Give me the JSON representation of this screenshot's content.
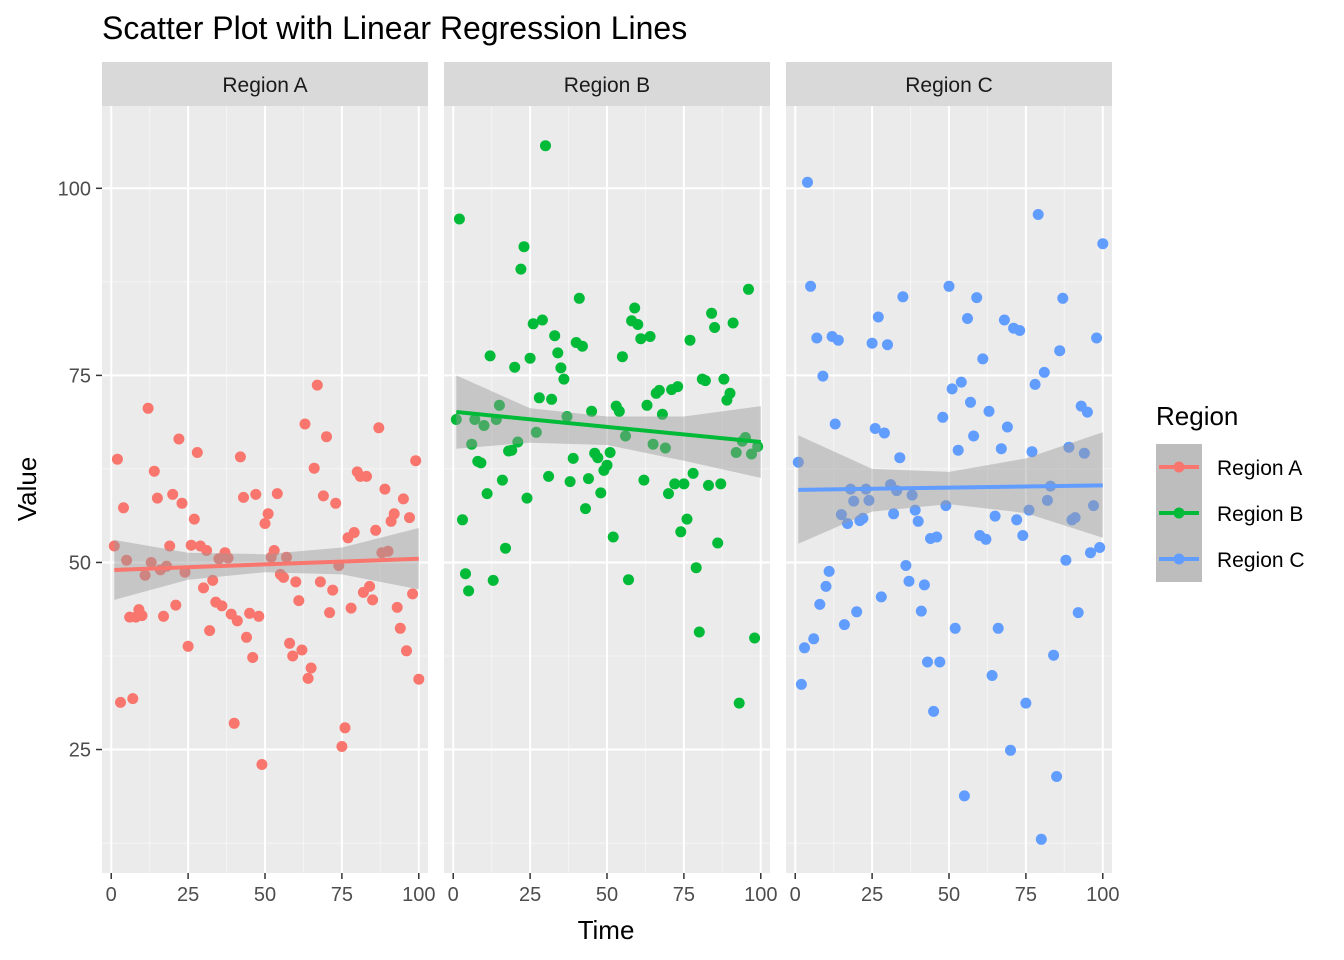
{
  "chart_data": {
    "type": "scatter",
    "title": "Scatter Plot with Linear Regression Lines",
    "xlabel": "Time",
    "ylabel": "Value",
    "xlim": [
      -3,
      103
    ],
    "ylim": [
      8.5,
      111
    ],
    "x_ticks": [
      0,
      25,
      50,
      75,
      100
    ],
    "y_ticks": [
      25,
      50,
      75,
      100
    ],
    "grid": true,
    "legend": {
      "title": "Region",
      "placement": "right"
    },
    "facets": [
      {
        "label": "Region A",
        "color": "#F8766D",
        "regression": {
          "x": [
            1,
            100
          ],
          "y": [
            49.0,
            50.5
          ]
        },
        "confidence_band": {
          "x": [
            1,
            25,
            50,
            75,
            100
          ],
          "lower": [
            45.0,
            47.7,
            48.7,
            48.4,
            46.4
          ],
          "upper": [
            53.0,
            51.3,
            51.1,
            52.0,
            54.6
          ]
        },
        "points": [
          [
            1,
            52.2
          ],
          [
            2,
            63.8
          ],
          [
            3,
            31.3
          ],
          [
            4,
            57.3
          ],
          [
            5,
            50.3
          ],
          [
            6,
            42.7
          ],
          [
            7,
            31.8
          ],
          [
            8,
            42.7
          ],
          [
            9,
            43.7
          ],
          [
            10,
            42.9
          ],
          [
            11,
            48.3
          ],
          [
            12,
            70.6
          ],
          [
            13,
            50.0
          ],
          [
            14,
            62.2
          ],
          [
            15,
            58.6
          ],
          [
            16,
            49.0
          ],
          [
            17,
            42.8
          ],
          [
            18,
            49.5
          ],
          [
            19,
            52.2
          ],
          [
            20,
            59.1
          ],
          [
            21,
            44.3
          ],
          [
            22,
            66.5
          ],
          [
            23,
            57.9
          ],
          [
            24,
            48.7
          ],
          [
            25,
            38.8
          ],
          [
            26,
            52.3
          ],
          [
            27,
            55.8
          ],
          [
            28,
            64.7
          ],
          [
            29,
            52.2
          ],
          [
            30,
            46.6
          ],
          [
            31,
            51.6
          ],
          [
            32,
            40.9
          ],
          [
            33,
            47.6
          ],
          [
            34,
            44.7
          ],
          [
            35,
            50.5
          ],
          [
            36,
            44.2
          ],
          [
            37,
            51.3
          ],
          [
            38,
            50.6
          ],
          [
            39,
            43.1
          ],
          [
            40,
            28.5
          ],
          [
            41,
            42.2
          ],
          [
            42,
            64.1
          ],
          [
            43,
            58.7
          ],
          [
            44,
            40.0
          ],
          [
            45,
            43.2
          ],
          [
            46,
            37.3
          ],
          [
            47,
            59.1
          ],
          [
            48,
            42.8
          ],
          [
            49,
            23.0
          ],
          [
            50,
            55.2
          ],
          [
            51,
            56.5
          ],
          [
            52,
            50.7
          ],
          [
            53,
            51.6
          ],
          [
            54,
            59.2
          ],
          [
            55,
            48.4
          ],
          [
            56,
            48.0
          ],
          [
            57,
            50.7
          ],
          [
            58,
            39.2
          ],
          [
            59,
            37.5
          ],
          [
            60,
            47.4
          ],
          [
            61,
            44.9
          ],
          [
            62,
            38.3
          ],
          [
            63,
            68.5
          ],
          [
            64,
            34.5
          ],
          [
            65,
            35.9
          ],
          [
            66,
            62.6
          ],
          [
            67,
            73.7
          ],
          [
            68,
            47.4
          ],
          [
            69,
            58.9
          ],
          [
            70,
            66.8
          ],
          [
            71,
            43.3
          ],
          [
            72,
            46.3
          ],
          [
            73,
            57.9
          ],
          [
            74,
            49.6
          ],
          [
            75,
            25.4
          ],
          [
            76,
            27.9
          ],
          [
            77,
            53.3
          ],
          [
            78,
            43.9
          ],
          [
            79,
            54.0
          ],
          [
            80,
            62.1
          ],
          [
            81,
            61.5
          ],
          [
            82,
            46.0
          ],
          [
            83,
            61.5
          ],
          [
            84,
            46.8
          ],
          [
            85,
            45.0
          ],
          [
            86,
            54.3
          ],
          [
            87,
            68.0
          ],
          [
            88,
            51.3
          ],
          [
            89,
            59.8
          ],
          [
            90,
            51.5
          ],
          [
            91,
            55.5
          ],
          [
            92,
            56.5
          ],
          [
            93,
            44.0
          ],
          [
            94,
            41.2
          ],
          [
            95,
            58.5
          ],
          [
            96,
            38.2
          ],
          [
            97,
            56.0
          ],
          [
            98,
            45.8
          ],
          [
            99,
            63.6
          ],
          [
            100,
            34.4
          ]
        ]
      },
      {
        "label": "Region B",
        "color": "#00BA38",
        "regression": {
          "x": [
            1,
            100
          ],
          "y": [
            70.1,
            66.1
          ]
        },
        "confidence_band": {
          "x": [
            1,
            25,
            50,
            75,
            100
          ],
          "lower": [
            65.2,
            66.0,
            65.7,
            63.6,
            61.3
          ],
          "upper": [
            75.0,
            70.6,
            69.5,
            69.5,
            70.9
          ]
        },
        "points": [
          [
            1,
            69.1
          ],
          [
            2,
            95.9
          ],
          [
            3,
            55.7
          ],
          [
            4,
            48.5
          ],
          [
            5,
            46.2
          ],
          [
            6,
            65.8
          ],
          [
            7,
            69.1
          ],
          [
            8,
            63.5
          ],
          [
            9,
            63.3
          ],
          [
            10,
            68.3
          ],
          [
            11,
            59.2
          ],
          [
            12,
            77.6
          ],
          [
            13,
            47.6
          ],
          [
            14,
            69.1
          ],
          [
            15,
            71.0
          ],
          [
            16,
            61.0
          ],
          [
            17,
            51.9
          ],
          [
            18,
            64.9
          ],
          [
            19,
            65.0
          ],
          [
            20,
            76.1
          ],
          [
            21,
            66.1
          ],
          [
            22,
            89.2
          ],
          [
            23,
            92.2
          ],
          [
            24,
            58.6
          ],
          [
            25,
            77.3
          ],
          [
            26,
            81.9
          ],
          [
            27,
            67.4
          ],
          [
            28,
            72.0
          ],
          [
            29,
            82.4
          ],
          [
            30,
            105.7
          ],
          [
            31,
            61.5
          ],
          [
            32,
            71.8
          ],
          [
            33,
            80.3
          ],
          [
            34,
            78.0
          ],
          [
            35,
            76.0
          ],
          [
            36,
            74.5
          ],
          [
            37,
            69.5
          ],
          [
            38,
            60.8
          ],
          [
            39,
            63.9
          ],
          [
            40,
            79.4
          ],
          [
            41,
            85.3
          ],
          [
            42,
            78.9
          ],
          [
            43,
            57.2
          ],
          [
            44,
            61.2
          ],
          [
            45,
            70.2
          ],
          [
            46,
            64.6
          ],
          [
            47,
            64.0
          ],
          [
            48,
            59.3
          ],
          [
            49,
            62.3
          ],
          [
            50,
            63.0
          ],
          [
            51,
            64.7
          ],
          [
            52,
            53.4
          ],
          [
            53,
            70.9
          ],
          [
            54,
            70.2
          ],
          [
            55,
            77.5
          ],
          [
            56,
            66.9
          ],
          [
            57,
            47.7
          ],
          [
            58,
            82.3
          ],
          [
            59,
            84.0
          ],
          [
            60,
            81.8
          ],
          [
            61,
            79.9
          ],
          [
            62,
            61.0
          ],
          [
            63,
            71.0
          ],
          [
            64,
            80.2
          ],
          [
            65,
            65.8
          ],
          [
            66,
            72.6
          ],
          [
            67,
            73.0
          ],
          [
            68,
            69.8
          ],
          [
            69,
            65.3
          ],
          [
            70,
            59.2
          ],
          [
            71,
            73.1
          ],
          [
            72,
            60.5
          ],
          [
            73,
            73.5
          ],
          [
            74,
            54.1
          ],
          [
            75,
            60.5
          ],
          [
            76,
            55.8
          ],
          [
            77,
            79.7
          ],
          [
            78,
            61.9
          ],
          [
            79,
            49.3
          ],
          [
            80,
            40.7
          ],
          [
            81,
            74.5
          ],
          [
            82,
            74.3
          ],
          [
            83,
            60.3
          ],
          [
            84,
            83.3
          ],
          [
            85,
            81.4
          ],
          [
            86,
            52.6
          ],
          [
            87,
            60.5
          ],
          [
            88,
            74.5
          ],
          [
            89,
            71.7
          ],
          [
            90,
            72.6
          ],
          [
            91,
            82.0
          ],
          [
            92,
            64.7
          ],
          [
            93,
            31.2
          ],
          [
            94,
            66.2
          ],
          [
            95,
            66.7
          ],
          [
            96,
            86.5
          ],
          [
            97,
            64.5
          ],
          [
            98,
            39.9
          ],
          [
            99,
            65.5
          ]
        ]
      },
      {
        "label": "Region C",
        "color": "#619CFF",
        "regression": {
          "x": [
            1,
            100
          ],
          "y": [
            59.7,
            60.3
          ]
        },
        "confidence_band": {
          "x": [
            1,
            25,
            50,
            75,
            100
          ],
          "lower": [
            52.5,
            56.8,
            57.8,
            56.6,
            53.3
          ],
          "upper": [
            67.0,
            62.5,
            62.1,
            63.9,
            67.4
          ]
        },
        "points": [
          [
            1,
            63.4
          ],
          [
            2,
            33.7
          ],
          [
            3,
            38.6
          ],
          [
            4,
            100.8
          ],
          [
            5,
            86.9
          ],
          [
            6,
            39.8
          ],
          [
            7,
            80.0
          ],
          [
            8,
            44.4
          ],
          [
            9,
            74.9
          ],
          [
            10,
            46.8
          ],
          [
            11,
            48.8
          ],
          [
            12,
            80.2
          ],
          [
            13,
            68.5
          ],
          [
            14,
            79.7
          ],
          [
            15,
            56.4
          ],
          [
            16,
            41.7
          ],
          [
            17,
            55.2
          ],
          [
            18,
            59.8
          ],
          [
            19,
            58.2
          ],
          [
            20,
            43.4
          ],
          [
            21,
            55.6
          ],
          [
            22,
            55.9
          ],
          [
            23,
            59.8
          ],
          [
            24,
            58.3
          ],
          [
            25,
            79.3
          ],
          [
            26,
            67.9
          ],
          [
            27,
            82.8
          ],
          [
            28,
            45.4
          ],
          [
            29,
            67.3
          ],
          [
            30,
            79.1
          ],
          [
            31,
            60.4
          ],
          [
            32,
            56.5
          ],
          [
            33,
            59.6
          ],
          [
            34,
            64.0
          ],
          [
            35,
            85.5
          ],
          [
            36,
            49.6
          ],
          [
            37,
            47.5
          ],
          [
            38,
            59.0
          ],
          [
            39,
            57.0
          ],
          [
            40,
            55.5
          ],
          [
            41,
            43.5
          ],
          [
            42,
            47.0
          ],
          [
            43,
            36.7
          ],
          [
            44,
            53.2
          ],
          [
            45,
            30.1
          ],
          [
            46,
            53.4
          ],
          [
            47,
            36.7
          ],
          [
            48,
            69.4
          ],
          [
            49,
            57.6
          ],
          [
            50,
            86.9
          ],
          [
            51,
            73.2
          ],
          [
            52,
            41.2
          ],
          [
            53,
            65.0
          ],
          [
            54,
            74.1
          ],
          [
            55,
            18.8
          ],
          [
            56,
            82.6
          ],
          [
            57,
            71.4
          ],
          [
            58,
            66.9
          ],
          [
            59,
            85.4
          ],
          [
            60,
            53.6
          ],
          [
            61,
            77.2
          ],
          [
            62,
            53.1
          ],
          [
            63,
            70.2
          ],
          [
            64,
            34.9
          ],
          [
            65,
            56.2
          ],
          [
            66,
            41.2
          ],
          [
            67,
            65.2
          ],
          [
            68,
            82.4
          ],
          [
            69,
            68.1
          ],
          [
            70,
            24.9
          ],
          [
            71,
            81.3
          ],
          [
            72,
            55.7
          ],
          [
            73,
            81.0
          ],
          [
            74,
            53.6
          ],
          [
            75,
            31.2
          ],
          [
            76,
            57.0
          ],
          [
            77,
            64.8
          ],
          [
            78,
            73.8
          ],
          [
            79,
            96.5
          ],
          [
            80,
            13.0
          ],
          [
            81,
            75.4
          ],
          [
            82,
            58.3
          ],
          [
            83,
            60.2
          ],
          [
            84,
            37.6
          ],
          [
            85,
            21.4
          ],
          [
            86,
            78.3
          ],
          [
            87,
            85.3
          ],
          [
            88,
            50.3
          ],
          [
            89,
            65.4
          ],
          [
            90,
            55.7
          ],
          [
            91,
            56.0
          ],
          [
            92,
            43.3
          ],
          [
            93,
            70.9
          ],
          [
            94,
            64.6
          ],
          [
            95,
            70.1
          ],
          [
            96,
            51.3
          ],
          [
            97,
            57.6
          ],
          [
            98,
            80.0
          ],
          [
            99,
            52.0
          ],
          [
            100,
            92.6
          ]
        ]
      }
    ]
  }
}
